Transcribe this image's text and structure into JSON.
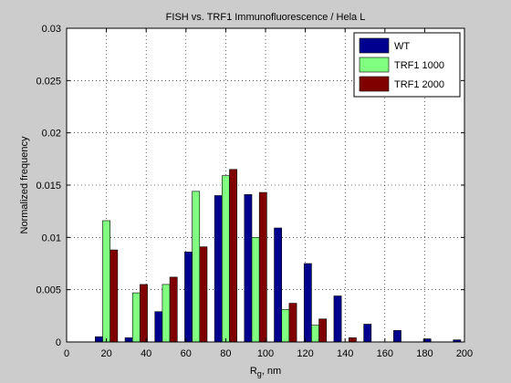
{
  "chart_data": {
    "type": "bar",
    "title": "FISH vs. TRF1 Immunofluorescence / Hela L",
    "xlabel": "R_g, nm",
    "xlabel_main": "R",
    "xlabel_sub": "g",
    "xlabel_rest": ", nm",
    "ylabel": "Normalized frequency",
    "xlim": [
      0,
      200
    ],
    "ylim": [
      0,
      0.03
    ],
    "grid": true,
    "legend_position": "top-right",
    "x_ticks": [
      "0",
      "20",
      "40",
      "60",
      "80",
      "100",
      "120",
      "140",
      "160",
      "180",
      "200"
    ],
    "y_ticks": [
      "0",
      "0.005",
      "0.01",
      "0.015",
      "0.02",
      "0.025",
      "0.03"
    ],
    "categories": [
      20,
      35,
      50,
      65,
      80,
      95,
      110,
      125,
      140,
      155,
      170,
      185,
      200
    ],
    "series": [
      {
        "name": "WT",
        "color": "#00008f",
        "values": [
          0.0005,
          0.0004,
          0.0029,
          0.0086,
          0.014,
          0.0141,
          0.0109,
          0.0075,
          0.0044,
          0.0017,
          0.0011,
          0.0003,
          0.0002
        ]
      },
      {
        "name": "TRF1 1000",
        "color": "#80ff80",
        "values": [
          0.0116,
          0.0047,
          0.0055,
          0.0144,
          0.0159,
          0.01,
          0.0031,
          0.0016,
          0,
          0,
          0,
          0,
          0
        ]
      },
      {
        "name": "TRF1 2000",
        "color": "#800000",
        "values": [
          0.0088,
          0.0055,
          0.0062,
          0.0091,
          0.0165,
          0.0143,
          0.0037,
          0.0022,
          0.0004,
          0,
          0,
          0,
          0
        ]
      }
    ]
  }
}
